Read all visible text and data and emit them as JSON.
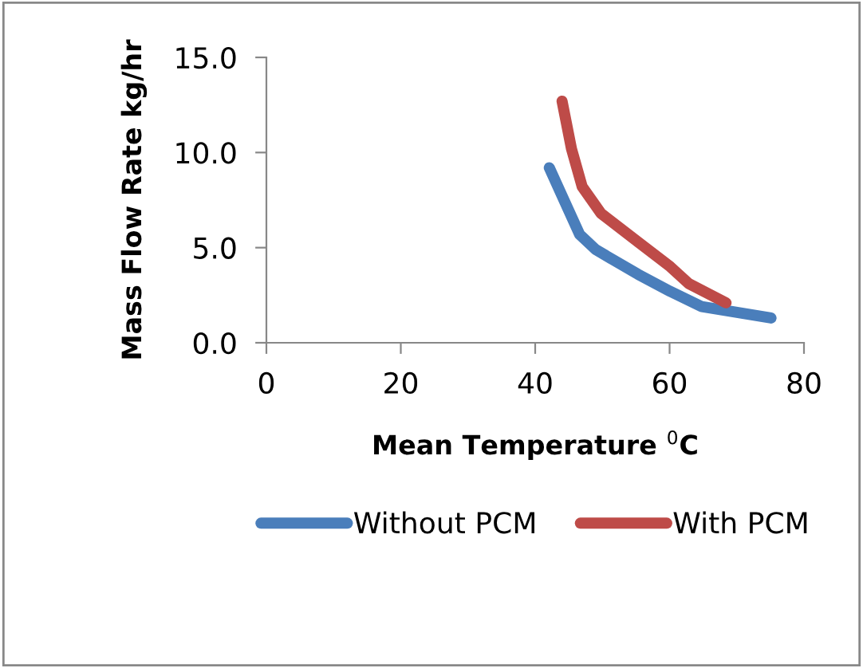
{
  "chart_data": {
    "type": "line",
    "xlabel": "Mean Temperature $^{0}$C",
    "ylabel": "Mass Flow Rate kg/hr",
    "xlim": [
      0,
      80
    ],
    "xticks": [
      0,
      20,
      40,
      60,
      80
    ],
    "ylim": [
      0,
      15
    ],
    "yticks": [
      {
        "value": 0,
        "label": "0.0"
      },
      {
        "value": 5,
        "label": "5.0"
      },
      {
        "value": 10,
        "label": "10.0"
      },
      {
        "value": 15,
        "label": "15.0"
      }
    ],
    "grid": false,
    "legend": "bottom",
    "marker": "none",
    "line_style": "solid",
    "series": [
      {
        "name": "Without PCM",
        "color": "#4a7ebb",
        "x": [
          42.1,
          46.6,
          49.0,
          55.3,
          60.1,
          64.8,
          75.1
        ],
        "values": [
          9.2,
          5.7,
          4.9,
          3.6,
          2.7,
          1.9,
          1.3
        ]
      },
      {
        "name": "With PCM",
        "color": "#be4b48",
        "x": [
          44.0,
          45.4,
          47.0,
          49.8,
          55.3,
          60.1,
          62.9,
          68.4
        ],
        "values": [
          12.7,
          10.2,
          8.2,
          6.8,
          5.3,
          4.0,
          3.1,
          2.1
        ]
      }
    ]
  }
}
